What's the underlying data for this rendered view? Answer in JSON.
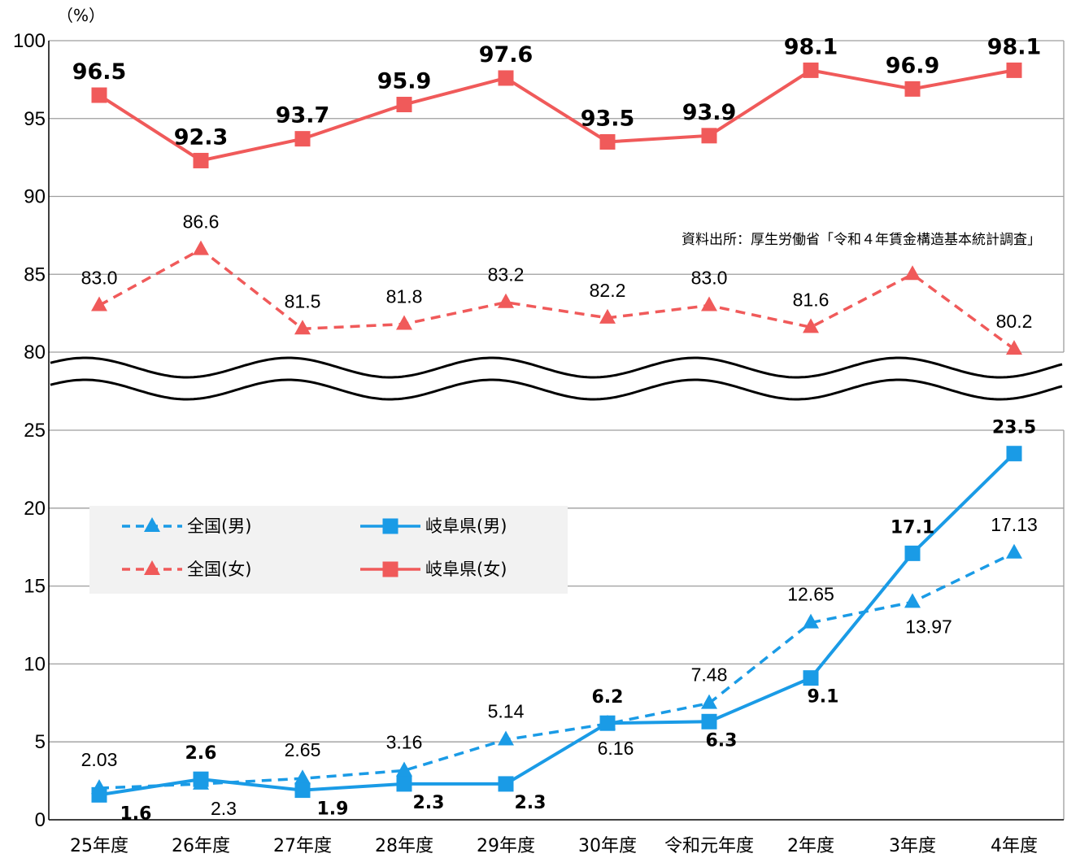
{
  "chart_data": {
    "type": "line",
    "unit_label": "（%）",
    "source": "資料出所：厚生労働省「令和４年賃金構造基本統計調査」",
    "categories": [
      "25年度",
      "26年度",
      "27年度",
      "28年度",
      "29年度",
      "30年度",
      "令和元年度",
      "2年度",
      "3年度",
      "4年度"
    ],
    "y_ticks_upper": [
      "80",
      "85",
      "90",
      "95",
      "100"
    ],
    "y_ticks_lower": [
      "0",
      "5",
      "10",
      "15",
      "20",
      "25"
    ],
    "ylim_upper": [
      80,
      100
    ],
    "ylim_lower": [
      0,
      25
    ],
    "axis_break": true,
    "grid": true,
    "series": [
      {
        "name": "岐阜県(女)",
        "color": "#F05A5A",
        "style": "solid",
        "marker": "square",
        "values": [
          96.5,
          92.3,
          93.7,
          95.9,
          97.6,
          93.5,
          93.9,
          98.1,
          96.9,
          98.1
        ],
        "labels": [
          "96.5",
          "92.3",
          "93.7",
          "95.9",
          "97.6",
          "93.5",
          "93.9",
          "98.1",
          "96.9",
          "98.1"
        ]
      },
      {
        "name": "全国(女)",
        "color": "#F05A5A",
        "style": "dashed",
        "marker": "triangle",
        "values": [
          83.0,
          86.6,
          81.5,
          81.8,
          83.2,
          82.2,
          83.0,
          81.6,
          85.0,
          80.2
        ],
        "labels": [
          "83.0",
          "86.6",
          "81.5",
          "81.8",
          "83.2",
          "82.2",
          "83.0",
          "81.6",
          "",
          "80.2"
        ]
      },
      {
        "name": "全国(男)",
        "color": "#1A9BE6",
        "style": "dashed",
        "marker": "triangle",
        "values": [
          2.03,
          2.3,
          2.65,
          3.16,
          5.14,
          6.16,
          7.48,
          12.65,
          13.97,
          17.13
        ],
        "labels": [
          "2.03",
          "2.3",
          "2.65",
          "3.16",
          "5.14",
          "6.16",
          "7.48",
          "12.65",
          "13.97",
          "17.13"
        ]
      },
      {
        "name": "岐阜県(男)",
        "color": "#1A9BE6",
        "style": "solid",
        "marker": "square",
        "values": [
          1.6,
          2.6,
          1.9,
          2.3,
          2.3,
          6.2,
          6.3,
          9.1,
          17.1,
          23.5
        ],
        "labels": [
          "1.6",
          "2.6",
          "1.9",
          "2.3",
          "2.3",
          "6.2",
          "6.3",
          "9.1",
          "17.1",
          "23.5"
        ]
      }
    ],
    "legend": [
      {
        "label": "全国(男)",
        "color": "#1A9BE6",
        "style": "dashed",
        "marker": "triangle"
      },
      {
        "label": "岐阜県(男)",
        "color": "#1A9BE6",
        "style": "solid",
        "marker": "square"
      },
      {
        "label": "全国(女)",
        "color": "#F05A5A",
        "style": "dashed",
        "marker": "triangle"
      },
      {
        "label": "岐阜県(女)",
        "color": "#F05A5A",
        "style": "solid",
        "marker": "square"
      }
    ]
  }
}
